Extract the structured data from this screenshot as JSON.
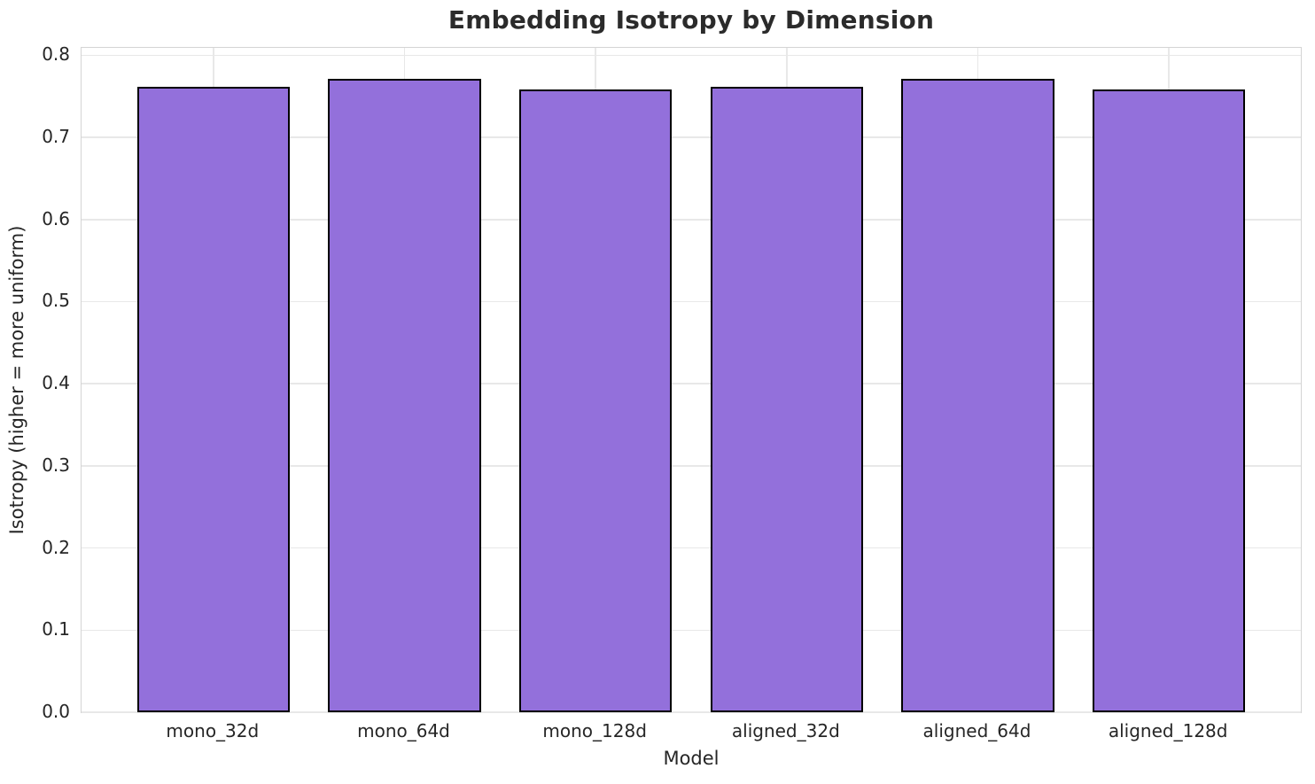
{
  "chart_data": {
    "type": "bar",
    "title": "Embedding Isotropy by Dimension",
    "xlabel": "Model",
    "ylabel": "Isotropy (higher = more uniform)",
    "categories": [
      "mono_32d",
      "mono_64d",
      "mono_128d",
      "aligned_32d",
      "aligned_64d",
      "aligned_128d"
    ],
    "values": [
      0.761,
      0.771,
      0.758,
      0.761,
      0.771,
      0.758
    ],
    "ylim": [
      0,
      0.809
    ],
    "xlim": [
      -0.69,
      5.69
    ],
    "yticks": [
      0.0,
      0.1,
      0.2,
      0.3,
      0.4,
      0.5,
      0.6,
      0.7,
      0.8
    ],
    "ytick_decimals": 1,
    "bar_width": 0.8,
    "grid": true,
    "legend": null,
    "colors": {
      "bar_fill": "#9370db",
      "bar_edge": "#000000",
      "grid_line": "#e8e8e8",
      "spine": "#d4d4d4",
      "text": "#262626",
      "title": "#2b2b2b"
    }
  }
}
